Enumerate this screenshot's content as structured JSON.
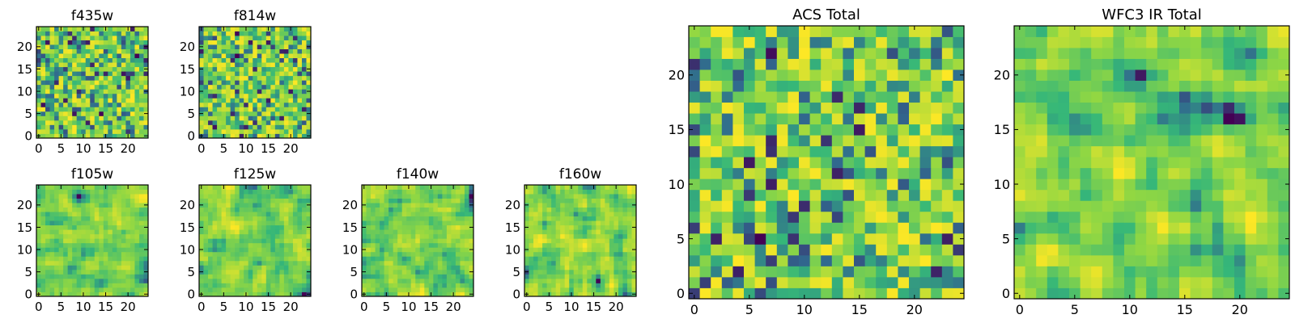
{
  "colormap": [
    "#440154",
    "#31688e",
    "#35b779",
    "#90d743",
    "#fde725"
  ],
  "chart_data": [
    {
      "type": "heatmap",
      "title": "f435w",
      "x_ticks": [
        0,
        5,
        10,
        15,
        20
      ],
      "y_ticks": [
        0,
        5,
        10,
        15,
        20
      ],
      "xlim": [
        0,
        24
      ],
      "ylim": [
        0,
        24
      ],
      "size": 25,
      "seed": 11,
      "smooth": 0
    },
    {
      "type": "heatmap",
      "title": "f814w",
      "x_ticks": [
        0,
        5,
        10,
        15,
        20
      ],
      "y_ticks": [
        0,
        5,
        10,
        15,
        20
      ],
      "xlim": [
        0,
        24
      ],
      "ylim": [
        0,
        24
      ],
      "size": 25,
      "seed": 23,
      "smooth": 0
    },
    {
      "type": "heatmap",
      "title": "f105w",
      "x_ticks": [
        0,
        5,
        10,
        15,
        20
      ],
      "y_ticks": [
        0,
        5,
        10,
        15,
        20
      ],
      "xlim": [
        0,
        24
      ],
      "ylim": [
        0,
        24
      ],
      "size": 25,
      "seed": 37,
      "smooth": 1
    },
    {
      "type": "heatmap",
      "title": "f125w",
      "x_ticks": [
        0,
        5,
        10,
        15,
        20
      ],
      "y_ticks": [
        0,
        5,
        10,
        15,
        20
      ],
      "xlim": [
        0,
        24
      ],
      "ylim": [
        0,
        24
      ],
      "size": 25,
      "seed": 41,
      "smooth": 1
    },
    {
      "type": "heatmap",
      "title": "f140w",
      "x_ticks": [
        0,
        5,
        10,
        15,
        20
      ],
      "y_ticks": [
        0,
        5,
        10,
        15,
        20
      ],
      "xlim": [
        0,
        24
      ],
      "ylim": [
        0,
        24
      ],
      "size": 25,
      "seed": 53,
      "smooth": 1
    },
    {
      "type": "heatmap",
      "title": "f160w",
      "x_ticks": [
        0,
        5,
        10,
        15,
        20
      ],
      "y_ticks": [
        0,
        5,
        10,
        15,
        20
      ],
      "xlim": [
        0,
        24
      ],
      "ylim": [
        0,
        24
      ],
      "size": 25,
      "seed": 67,
      "smooth": 1
    },
    {
      "type": "heatmap",
      "title": "ACS Total",
      "x_ticks": [
        0,
        5,
        10,
        15,
        20
      ],
      "y_ticks": [
        0,
        5,
        10,
        15,
        20
      ],
      "xlim": [
        0,
        24
      ],
      "ylim": [
        0,
        24
      ],
      "size": 25,
      "seed": 79,
      "smooth": 0
    },
    {
      "type": "heatmap",
      "title": "WFC3 IR Total",
      "x_ticks": [
        0,
        5,
        10,
        15,
        20
      ],
      "y_ticks": [
        0,
        5,
        10,
        15,
        20
      ],
      "xlim": [
        0,
        24
      ],
      "ylim": [
        0,
        24
      ],
      "size": 25,
      "seed": 97,
      "smooth": 1
    }
  ]
}
